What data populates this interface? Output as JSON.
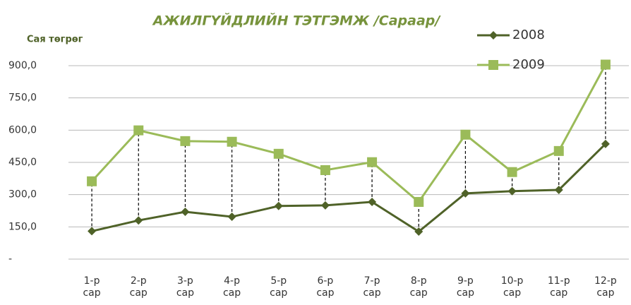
{
  "chart_data": {
    "type": "line",
    "title": "АЖИЛГҮЙДЛИЙН  ТЭТГЭМЖ  /Сараар/",
    "y_label": "Сая төгрөг",
    "categories": [
      "1-р сар",
      "2-р сар",
      "3-р сар",
      "4-р сар",
      "5-р сар",
      "6-р сар",
      "7-р сар",
      "8-р сар",
      "9-р сар",
      "10-р сар",
      "11-р сар",
      "12-р сар"
    ],
    "series": [
      {
        "name": "2008",
        "color": "#4f6228",
        "marker": "diamond",
        "values": [
          130,
          180,
          220,
          197,
          247,
          250,
          266,
          128,
          306,
          316,
          322,
          536
        ]
      },
      {
        "name": "2009",
        "color": "#9bbb59",
        "marker": "square",
        "values": [
          362,
          599,
          549,
          546,
          490,
          414,
          451,
          266,
          579,
          405,
          503,
          905
        ]
      }
    ],
    "drop_lines": true,
    "ylim": [
      0,
      900
    ],
    "yticks": [
      {
        "value": 0,
        "label": "-"
      },
      {
        "value": 150,
        "label": "150,0"
      },
      {
        "value": 300,
        "label": "300,0"
      },
      {
        "value": 450,
        "label": "450,0"
      },
      {
        "value": 600,
        "label": "600,0"
      },
      {
        "value": 750,
        "label": "750,0"
      },
      {
        "value": 900,
        "label": "900,0"
      }
    ],
    "grid": true,
    "legend": "top-right"
  }
}
